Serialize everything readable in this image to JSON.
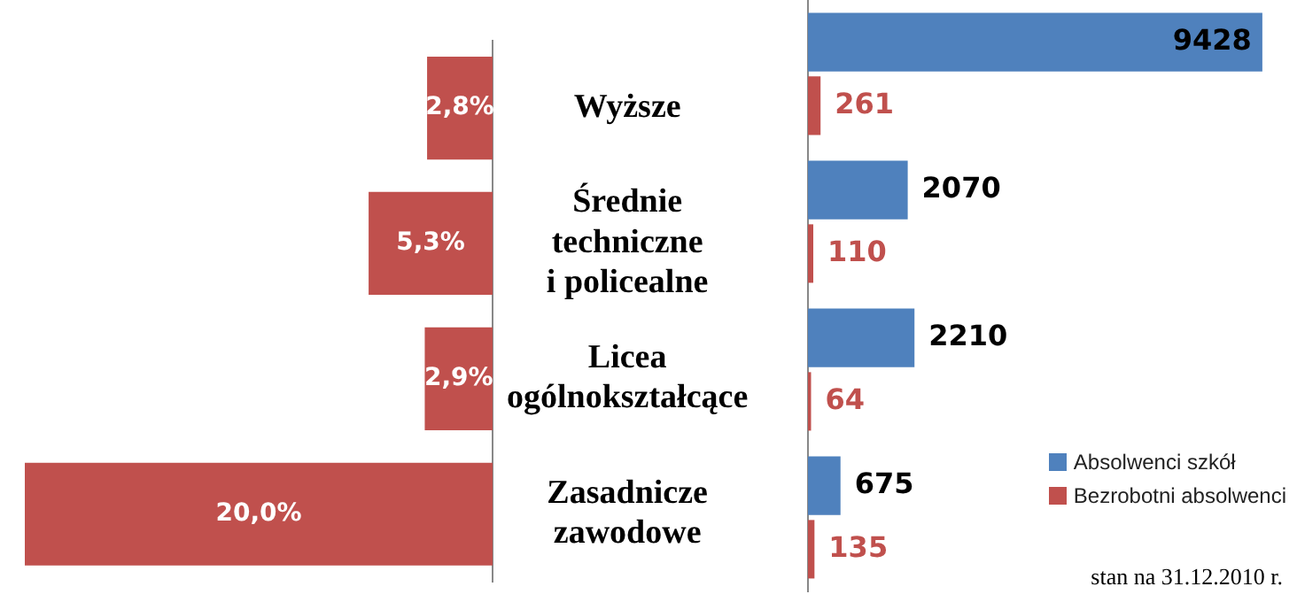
{
  "chart_data": [
    {
      "type": "bar",
      "orientation": "horizontal",
      "categories": [
        "Wyższe",
        "Średnie\ntechniczne\ni policealne",
        "Licea\nogólnokształcące",
        "Zasadnicze\nzawodowe"
      ],
      "values": [
        2.8,
        5.3,
        2.9,
        20.0
      ],
      "color": "#c0504d",
      "value_labels": [
        "2,8%",
        "5,3%",
        "2,9%",
        "20,0%"
      ],
      "xlim": [
        20,
        0
      ],
      "tick_labels": "y"
    },
    {
      "type": "bar",
      "orientation": "horizontal",
      "categories": [
        null,
        null,
        null,
        null
      ],
      "series": [
        {
          "name": "Bezrobotni absolwenci",
          "color": "#c0504d",
          "values": [
            261,
            110,
            64,
            135
          ]
        },
        {
          "name": "Absolwenci szkół",
          "color": "#4f81bd",
          "values": [
            9428,
            2070,
            2210,
            675
          ]
        }
      ],
      "data_labels": true,
      "tick_labels": false,
      "legend": "bottom right",
      "annotations": [
        "stan na 31.12.2010 r."
      ]
    }
  ]
}
